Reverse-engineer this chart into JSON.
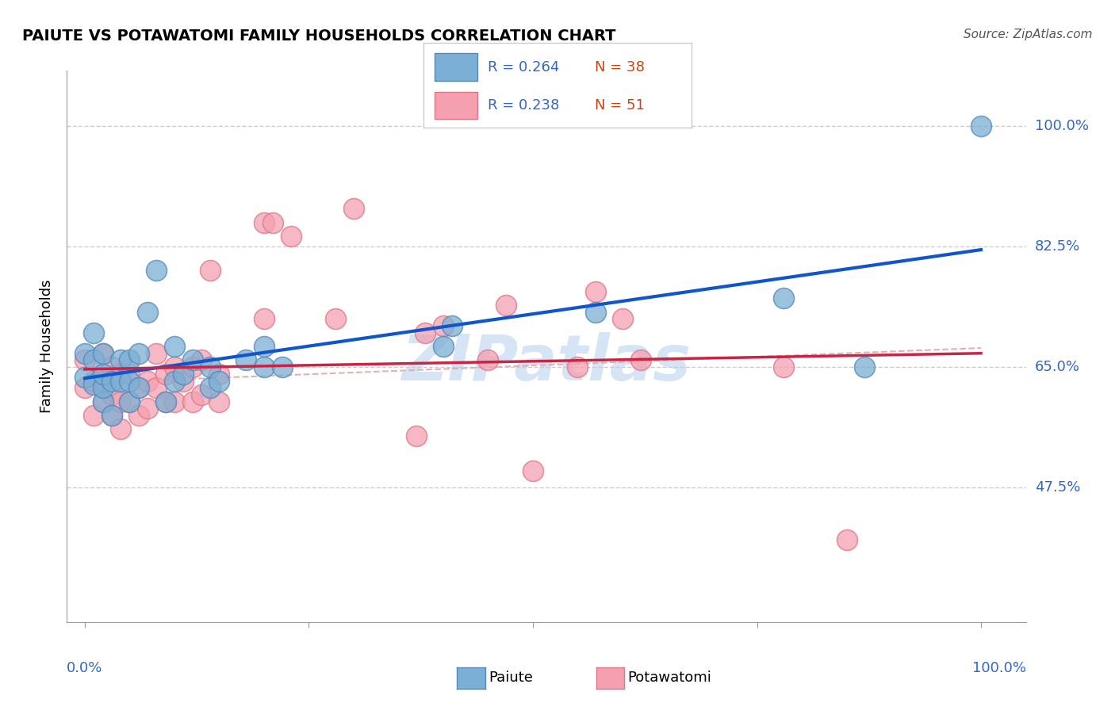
{
  "title": "PAIUTE VS POTAWATOMI FAMILY HOUSEHOLDS CORRELATION CHART",
  "source": "Source: ZipAtlas.com",
  "ylabel": "Family Households",
  "ytick_values": [
    0.475,
    0.65,
    0.825,
    1.0
  ],
  "xlim": [
    -0.02,
    1.05
  ],
  "ylim": [
    0.28,
    1.08
  ],
  "legend_blue_r": "R = 0.264",
  "legend_blue_n": "N = 38",
  "legend_pink_r": "R = 0.238",
  "legend_pink_n": "N = 51",
  "legend_label_blue": "Paiute",
  "legend_label_pink": "Potawatomi",
  "blue_color": "#7BAFD4",
  "blue_edge_color": "#5588BB",
  "pink_color": "#F4A0B0",
  "pink_edge_color": "#DD7788",
  "blue_line_color": "#1155CC",
  "pink_line_color": "#CC2244",
  "pink_dash_color": "#DDAAAA",
  "watermark_color": "#D5E5F5",
  "r_color": "#3366CC",
  "n_color": "#CC4411",
  "blue_x": [
    0.0,
    0.0,
    0.01,
    0.01,
    0.01,
    0.02,
    0.02,
    0.02,
    0.02,
    0.03,
    0.03,
    0.04,
    0.04,
    0.05,
    0.05,
    0.05,
    0.06,
    0.06,
    0.07,
    0.08,
    0.09,
    0.1,
    0.1,
    0.11,
    0.12,
    0.14,
    0.14,
    0.15,
    0.18,
    0.2,
    0.2,
    0.22,
    0.4,
    0.41,
    0.57,
    0.78,
    0.87,
    1.0
  ],
  "blue_y": [
    0.635,
    0.67,
    0.625,
    0.66,
    0.7,
    0.6,
    0.62,
    0.64,
    0.67,
    0.58,
    0.63,
    0.63,
    0.66,
    0.6,
    0.63,
    0.66,
    0.62,
    0.67,
    0.73,
    0.79,
    0.6,
    0.63,
    0.68,
    0.64,
    0.66,
    0.62,
    0.65,
    0.63,
    0.66,
    0.65,
    0.68,
    0.65,
    0.68,
    0.71,
    0.73,
    0.75,
    0.65,
    1.0
  ],
  "pink_x": [
    0.0,
    0.0,
    0.01,
    0.01,
    0.02,
    0.02,
    0.02,
    0.03,
    0.03,
    0.03,
    0.04,
    0.04,
    0.04,
    0.05,
    0.05,
    0.06,
    0.06,
    0.07,
    0.07,
    0.08,
    0.08,
    0.09,
    0.09,
    0.1,
    0.1,
    0.11,
    0.12,
    0.12,
    0.13,
    0.13,
    0.14,
    0.15,
    0.15,
    0.2,
    0.2,
    0.23,
    0.28,
    0.37,
    0.38,
    0.4,
    0.45,
    0.47,
    0.5,
    0.55,
    0.57,
    0.6,
    0.62,
    0.78,
    0.85,
    0.3,
    0.21
  ],
  "pink_y": [
    0.62,
    0.66,
    0.58,
    0.63,
    0.6,
    0.63,
    0.67,
    0.58,
    0.61,
    0.65,
    0.56,
    0.6,
    0.64,
    0.6,
    0.64,
    0.58,
    0.62,
    0.59,
    0.63,
    0.62,
    0.67,
    0.6,
    0.64,
    0.6,
    0.65,
    0.63,
    0.6,
    0.65,
    0.61,
    0.66,
    0.79,
    0.6,
    0.64,
    0.72,
    0.86,
    0.84,
    0.72,
    0.55,
    0.7,
    0.71,
    0.66,
    0.74,
    0.5,
    0.65,
    0.76,
    0.72,
    0.66,
    0.65,
    0.4,
    0.88,
    0.86
  ]
}
